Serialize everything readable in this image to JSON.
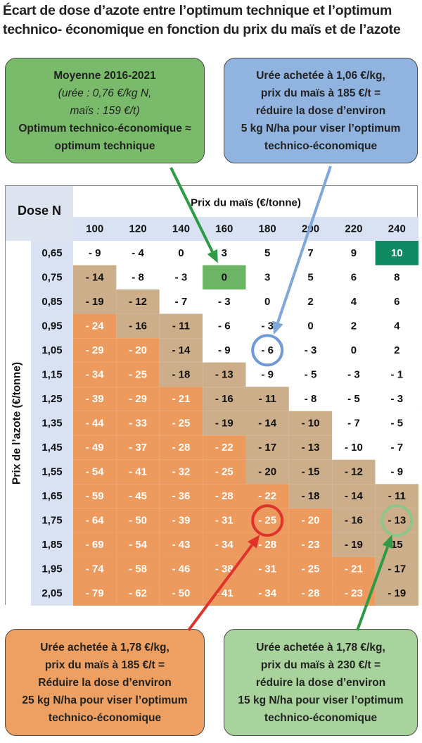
{
  "title": {
    "line1": "Écart de dose d’azote entre l’optimum technique et l’optimum",
    "line2": "technico- économique en fonction du prix du maïs et de l’azote"
  },
  "callouts": {
    "green_top": {
      "lines": [
        "Moyenne 2016-2021",
        "(urée : 0,76 €/kg N,",
        "maïs : 159 €/t)",
        "Optimum technico-économique ≈",
        "optimum technique"
      ]
    },
    "blue_top": {
      "lines": [
        "Urée achetée à 1,06 €/kg,",
        "prix du maïs à 185 €/t =",
        "réduire la dose d’environ",
        "5 kg N/ha pour viser l’optimum",
        "technico-économique"
      ]
    },
    "orange_bottom": {
      "lines": [
        "Urée achetée à 1,78 €/kg,",
        "prix du maïs à 185 €/t =",
        "Réduire la dose d’environ",
        "25 kg N/ha pour viser l’optimum",
        "technico-économique"
      ]
    },
    "green_bottom": {
      "lines": [
        "Urée achetée à 1,78 €/kg,",
        "prix du maïs à 230 €/t =",
        "réduire la dose d’environ",
        "15 kg N/ha pour viser l’optimum",
        "technico-économique"
      ]
    }
  },
  "colors": {
    "orange": "#ec9a5e",
    "tan": "#ccae8a",
    "green": "#6bb564",
    "dark_green": "#0f8a62",
    "header_blue": "#d8e2f3",
    "white": "#ffffff",
    "arrow_green": "#2e9a45",
    "arrow_blue": "#7fa7d9",
    "arrow_red": "#e0332c",
    "circle_blue": "#6f9ad6",
    "circle_red": "#e0332c",
    "circle_green": "#8dc58a"
  },
  "chart_data": {
    "type": "table",
    "corner_label": "Dose N",
    "col_axis_label": "Prix du maïs (€/tonne)",
    "row_axis_label": "Prix de l’azote (€/tonne)",
    "columns": [
      "100",
      "120",
      "140",
      "160",
      "180",
      "200",
      "220",
      "240"
    ],
    "rows": [
      "0,65",
      "0,75",
      "0,85",
      "0,95",
      "1,05",
      "1,15",
      "1,25",
      "1,35",
      "1,45",
      "1,55",
      "1,65",
      "1,75",
      "1,85",
      "1,95",
      "2,05"
    ],
    "values": [
      [
        "- 9",
        "- 4",
        "0",
        "3",
        "5",
        "7",
        "9",
        "10"
      ],
      [
        "- 14",
        "- 8",
        "- 3",
        "0",
        "3",
        "5",
        "6",
        "8"
      ],
      [
        "- 19",
        "- 12",
        "- 7",
        "- 3",
        "0",
        "2",
        "4",
        "6"
      ],
      [
        "- 24",
        "- 16",
        "- 11",
        "- 6",
        "- 3",
        "0",
        "2",
        "4"
      ],
      [
        "- 29",
        "- 20",
        "- 14",
        "- 9",
        "- 6",
        "- 3",
        "0",
        "2"
      ],
      [
        "- 34",
        "- 25",
        "- 18",
        "- 13",
        "- 9",
        "- 5",
        "- 3",
        "- 1"
      ],
      [
        "- 39",
        "- 29",
        "- 21",
        "- 16",
        "- 11",
        "- 8",
        "- 5",
        "- 3"
      ],
      [
        "- 44",
        "- 33",
        "- 25",
        "- 19",
        "- 14",
        "- 10",
        "- 7",
        "- 5"
      ],
      [
        "- 49",
        "- 37",
        "- 28",
        "- 22",
        "- 17",
        "- 13",
        "- 10",
        "- 7"
      ],
      [
        "- 54",
        "- 41",
        "- 32",
        "- 25",
        "- 20",
        "- 15",
        "- 12",
        "- 9"
      ],
      [
        "- 59",
        "- 45",
        "- 36",
        "- 28",
        "- 22",
        "- 18",
        "- 14",
        "- 11"
      ],
      [
        "- 64",
        "- 50",
        "- 39",
        "- 31",
        "- 25",
        "- 20",
        "- 16",
        "- 13"
      ],
      [
        "- 69",
        "- 54",
        "- 43",
        "- 34",
        "- 28",
        "- 23",
        "- 19",
        "15"
      ],
      [
        "- 74",
        "- 58",
        "- 46",
        "- 38",
        "- 31",
        "- 25",
        "- 21",
        "- 17"
      ],
      [
        "- 79",
        "- 62",
        "- 50",
        "- 41",
        "- 34",
        "- 28",
        "- 23",
        "- 19"
      ]
    ],
    "fills": [
      [
        "W",
        "W",
        "W",
        "W",
        "W",
        "W",
        "W",
        "D"
      ],
      [
        "T",
        "W",
        "W",
        "G",
        "W",
        "W",
        "W",
        "W"
      ],
      [
        "T",
        "T",
        "W",
        "W",
        "W",
        "W",
        "W",
        "W"
      ],
      [
        "O",
        "T",
        "T",
        "W",
        "W",
        "W",
        "W",
        "W"
      ],
      [
        "O",
        "O",
        "T",
        "W",
        "W",
        "W",
        "W",
        "W"
      ],
      [
        "O",
        "O",
        "T",
        "T",
        "W",
        "W",
        "W",
        "W"
      ],
      [
        "O",
        "O",
        "O",
        "T",
        "T",
        "W",
        "W",
        "W"
      ],
      [
        "O",
        "O",
        "O",
        "T",
        "T",
        "T",
        "W",
        "W"
      ],
      [
        "O",
        "O",
        "O",
        "O",
        "T",
        "T",
        "W",
        "W"
      ],
      [
        "O",
        "O",
        "O",
        "O",
        "T",
        "T",
        "T",
        "W"
      ],
      [
        "O",
        "O",
        "O",
        "O",
        "O",
        "T",
        "T",
        "T"
      ],
      [
        "O",
        "O",
        "O",
        "O",
        "O",
        "O",
        "T",
        "T"
      ],
      [
        "O",
        "O",
        "O",
        "O",
        "O",
        "O",
        "T",
        "T"
      ],
      [
        "O",
        "O",
        "O",
        "O",
        "O",
        "O",
        "O",
        "T"
      ],
      [
        "O",
        "O",
        "O",
        "O",
        "O",
        "O",
        "O",
        "T"
      ]
    ],
    "highlight_circles": [
      {
        "row": 4,
        "col": 4,
        "color": "blue"
      },
      {
        "row": 11,
        "col": 4,
        "color": "red"
      },
      {
        "row": 11,
        "col": 7,
        "color": "green"
      }
    ]
  }
}
